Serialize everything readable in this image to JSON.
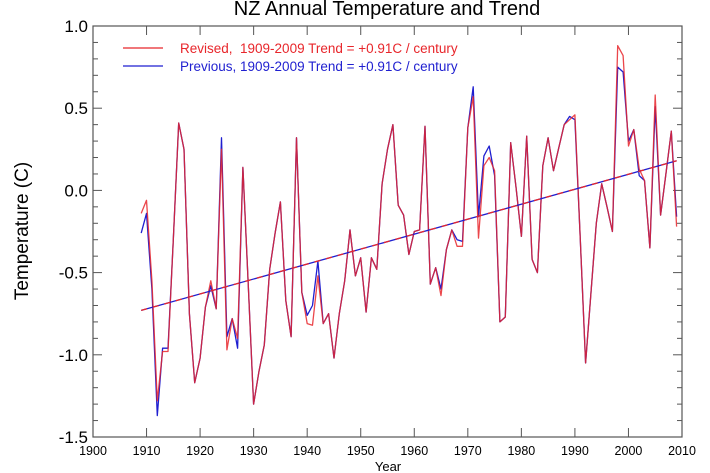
{
  "chart_data": {
    "type": "line",
    "title": "NZ Annual Temperature and Trend",
    "xlabel": "Year",
    "ylabel": "Temperature (C)",
    "xlim": [
      1900,
      2010
    ],
    "ylim": [
      -1.5,
      1.0
    ],
    "xticks": [
      1900,
      1910,
      1920,
      1930,
      1940,
      1950,
      1960,
      1970,
      1980,
      1990,
      2000,
      2010
    ],
    "xtick_labels": [
      "1900",
      "1910",
      "1920",
      "1930",
      "1940",
      "1950",
      "1960",
      "1970",
      "1980",
      "1990",
      "2000",
      "2010"
    ],
    "yticks": [
      1.0,
      0.5,
      0.0,
      -0.5,
      -1.0,
      -1.5
    ],
    "ytick_labels": [
      "1.0",
      "0.5",
      "0.0",
      "-0.5",
      "-1.0",
      "-1.5"
    ],
    "grid": false,
    "legend_position": "top-left",
    "x": [
      1909,
      1910,
      1911,
      1912,
      1913,
      1914,
      1915,
      1916,
      1917,
      1918,
      1919,
      1920,
      1921,
      1922,
      1923,
      1924,
      1925,
      1926,
      1927,
      1928,
      1929,
      1930,
      1931,
      1932,
      1933,
      1934,
      1935,
      1936,
      1937,
      1938,
      1939,
      1940,
      1941,
      1942,
      1943,
      1944,
      1945,
      1946,
      1947,
      1948,
      1949,
      1950,
      1951,
      1952,
      1953,
      1954,
      1955,
      1956,
      1957,
      1958,
      1959,
      1960,
      1961,
      1962,
      1963,
      1964,
      1965,
      1966,
      1967,
      1968,
      1969,
      1970,
      1971,
      1972,
      1973,
      1974,
      1975,
      1976,
      1977,
      1978,
      1979,
      1980,
      1981,
      1982,
      1983,
      1984,
      1985,
      1986,
      1987,
      1988,
      1989,
      1990,
      1991,
      1992,
      1993,
      1994,
      1995,
      1996,
      1997,
      1998,
      1999,
      2000,
      2001,
      2002,
      2003,
      2004,
      2005,
      2006,
      2007,
      2008,
      2009
    ],
    "series": [
      {
        "name": "Revised",
        "legend": "Revised,  1909-2009 Trend = +0.91C / century",
        "color": "#e8262b",
        "trend": [
          -0.73,
          0.18
        ],
        "values": [
          -0.14,
          -0.06,
          -0.55,
          -1.28,
          -0.98,
          -0.98,
          -0.3,
          0.41,
          0.25,
          -0.75,
          -1.17,
          -1.02,
          -0.71,
          -0.55,
          -0.72,
          0.25,
          -0.97,
          -0.78,
          -0.9,
          0.14,
          -0.58,
          -1.3,
          -1.1,
          -0.94,
          -0.48,
          -0.26,
          -0.07,
          -0.67,
          -0.89,
          0.32,
          -0.62,
          -0.81,
          -0.82,
          -0.52,
          -0.81,
          -0.75,
          -1.02,
          -0.75,
          -0.55,
          -0.24,
          -0.52,
          -0.41,
          -0.74,
          -0.41,
          -0.48,
          0.04,
          0.25,
          0.4,
          -0.09,
          -0.15,
          -0.39,
          -0.25,
          -0.24,
          0.39,
          -0.57,
          -0.47,
          -0.64,
          -0.36,
          -0.24,
          -0.34,
          -0.34,
          0.38,
          0.57,
          -0.29,
          0.15,
          0.2,
          0.12,
          -0.8,
          -0.77,
          0.29,
          0.02,
          -0.28,
          0.33,
          -0.42,
          -0.5,
          0.15,
          0.32,
          0.12,
          0.26,
          0.4,
          0.43,
          0.46,
          -0.3,
          -1.05,
          -0.62,
          -0.2,
          0.04,
          -0.1,
          -0.25,
          0.88,
          0.82,
          0.27,
          0.37,
          0.13,
          0.06,
          -0.35,
          0.58,
          -0.15,
          0.1,
          0.36,
          -0.22
        ]
      },
      {
        "name": "Previous",
        "legend": "Previous, 1909-2009 Trend = +0.91C / century",
        "color": "#1f1fd0",
        "trend": [
          -0.73,
          0.18
        ],
        "values": [
          -0.26,
          -0.14,
          -0.6,
          -1.37,
          -0.96,
          -0.96,
          -0.3,
          0.41,
          0.25,
          -0.75,
          -1.17,
          -1.02,
          -0.71,
          -0.58,
          -0.72,
          0.32,
          -0.89,
          -0.78,
          -0.96,
          0.14,
          -0.58,
          -1.3,
          -1.1,
          -0.94,
          -0.48,
          -0.26,
          -0.07,
          -0.67,
          -0.89,
          0.32,
          -0.62,
          -0.76,
          -0.7,
          -0.43,
          -0.81,
          -0.75,
          -1.02,
          -0.75,
          -0.55,
          -0.24,
          -0.52,
          -0.41,
          -0.74,
          -0.41,
          -0.48,
          0.04,
          0.25,
          0.4,
          -0.09,
          -0.15,
          -0.39,
          -0.25,
          -0.24,
          0.39,
          -0.57,
          -0.47,
          -0.6,
          -0.36,
          -0.24,
          -0.3,
          -0.31,
          0.38,
          0.63,
          -0.16,
          0.21,
          0.27,
          0.09,
          -0.8,
          -0.77,
          0.29,
          0.02,
          -0.28,
          0.33,
          -0.42,
          -0.5,
          0.15,
          0.32,
          0.12,
          0.26,
          0.4,
          0.45,
          0.43,
          -0.3,
          -1.05,
          -0.62,
          -0.2,
          0.04,
          -0.1,
          -0.25,
          0.75,
          0.72,
          0.3,
          0.37,
          0.09,
          0.06,
          -0.35,
          0.51,
          -0.15,
          0.1,
          0.36,
          -0.16
        ]
      }
    ]
  }
}
